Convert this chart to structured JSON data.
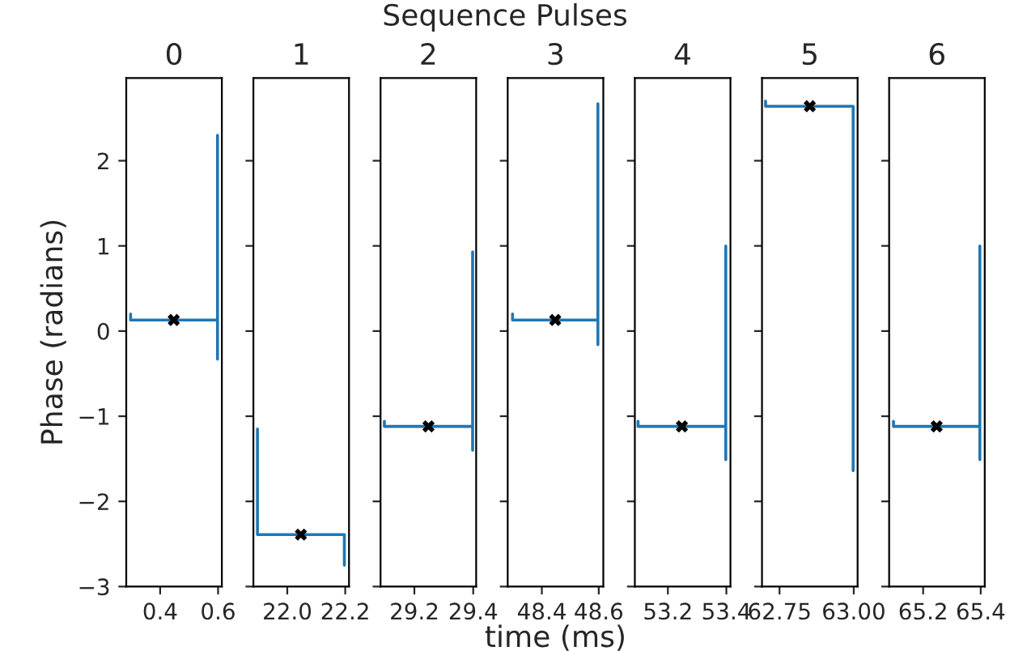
{
  "chart_data": [
    {
      "type": "line",
      "title": "0",
      "ylabel": "Phase (radians)",
      "xlim": [
        0.283,
        0.613
      ],
      "xticks": [
        0.4,
        0.6
      ],
      "ylim": [
        -3,
        2.97
      ],
      "yticks": [
        -3,
        -2,
        -1,
        0,
        1,
        2
      ],
      "series": [
        {
          "color": "#1f77b4",
          "x": [
            0.298,
            0.298,
            0.598,
            0.598,
            0.598
          ],
          "values": [
            0.2,
            0.13,
            0.13,
            -0.33,
            2.3
          ]
        },
        {
          "type": "scatter",
          "color": "#000000",
          "marker": "cross",
          "x": [
            0.447
          ],
          "values": [
            0.13
          ]
        }
      ]
    },
    {
      "type": "line",
      "title": "1",
      "tick_labels": "x",
      "xlim": [
        21.883,
        22.213
      ],
      "xticks": [
        {
          "value": 22.0,
          "label": "22.0"
        },
        22.2
      ],
      "ylim": [
        -3,
        2.97
      ],
      "yticks": [
        -3,
        -2,
        -1,
        0,
        1,
        2
      ],
      "series": [
        {
          "color": "#1f77b4",
          "x": [
            21.897,
            21.897,
            22.197,
            22.197
          ],
          "values": [
            -1.15,
            -2.39,
            -2.39,
            -2.75
          ]
        },
        {
          "type": "scatter",
          "color": "#000000",
          "marker": "cross",
          "x": [
            22.047
          ],
          "values": [
            -2.39
          ]
        }
      ]
    },
    {
      "type": "line",
      "title": "2",
      "tick_labels": "x",
      "xlim": [
        29.085,
        29.41
      ],
      "xticks": [
        29.2,
        29.4
      ],
      "ylim": [
        -3,
        2.97
      ],
      "yticks": [
        -3,
        -2,
        -1,
        0,
        1,
        2
      ],
      "series": [
        {
          "color": "#1f77b4",
          "x": [
            29.098,
            29.098,
            29.398,
            29.398,
            29.398
          ],
          "values": [
            -1.06,
            -1.12,
            -1.12,
            -1.4,
            0.93
          ]
        },
        {
          "type": "scatter",
          "color": "#000000",
          "marker": "cross",
          "x": [
            29.248
          ],
          "values": [
            -1.12
          ]
        }
      ]
    },
    {
      "type": "line",
      "title": "3",
      "xlabel": "time (ms)",
      "annotations": [
        "Sequence Pulses"
      ],
      "tick_labels": "x",
      "xlim": [
        48.28,
        48.616
      ],
      "xticks": [
        48.4,
        48.6
      ],
      "ylim": [
        -3,
        2.97
      ],
      "yticks": [
        -3,
        -2,
        -1,
        0,
        1,
        2
      ],
      "series": [
        {
          "color": "#1f77b4",
          "x": [
            48.297,
            48.297,
            48.597,
            48.597,
            48.597
          ],
          "values": [
            0.2,
            0.13,
            0.13,
            -0.16,
            2.67
          ]
        },
        {
          "type": "scatter",
          "color": "#000000",
          "marker": "cross",
          "x": [
            48.447
          ],
          "values": [
            0.13
          ]
        }
      ]
    },
    {
      "type": "line",
      "title": "4",
      "tick_labels": "x",
      "xlim": [
        53.087,
        53.414
      ],
      "xticks": [
        53.2,
        53.4
      ],
      "ylim": [
        -3,
        2.97
      ],
      "yticks": [
        -3,
        -2,
        -1,
        0,
        1,
        2
      ],
      "series": [
        {
          "color": "#1f77b4",
          "x": [
            53.098,
            53.098,
            53.398,
            53.398,
            53.398
          ],
          "values": [
            -1.06,
            -1.12,
            -1.12,
            -1.51,
            1.0
          ]
        },
        {
          "type": "scatter",
          "color": "#000000",
          "marker": "cross",
          "x": [
            53.248
          ],
          "values": [
            -1.12
          ]
        }
      ]
    },
    {
      "type": "line",
      "title": "5",
      "tick_labels": "x",
      "xlim": [
        62.691,
        63.013
      ],
      "xticks": [
        62.75,
        {
          "value": 63.0,
          "label": "63.00"
        }
      ],
      "ylim": [
        -3,
        2.97
      ],
      "yticks": [
        -3,
        -2,
        -1,
        0,
        1,
        2
      ],
      "series": [
        {
          "color": "#1f77b4",
          "x": [
            62.703,
            62.703,
            62.998,
            62.998
          ],
          "values": [
            2.7,
            2.64,
            2.64,
            -1.64
          ]
        },
        {
          "type": "scatter",
          "color": "#000000",
          "marker": "cross",
          "x": [
            62.852
          ],
          "values": [
            2.64
          ]
        }
      ]
    },
    {
      "type": "line",
      "title": "6",
      "tick_labels": "x",
      "xlim": [
        65.082,
        65.414
      ],
      "xticks": [
        65.2,
        65.4
      ],
      "ylim": [
        -3,
        2.97
      ],
      "yticks": [
        -3,
        -2,
        -1,
        0,
        1,
        2
      ],
      "series": [
        {
          "color": "#1f77b4",
          "x": [
            65.097,
            65.097,
            65.397,
            65.397,
            65.397
          ],
          "values": [
            -1.06,
            -1.12,
            -1.12,
            -1.51,
            1.0
          ]
        },
        {
          "type": "scatter",
          "color": "#000000",
          "marker": "cross",
          "x": [
            65.247
          ],
          "values": [
            -1.12
          ]
        }
      ]
    }
  ]
}
